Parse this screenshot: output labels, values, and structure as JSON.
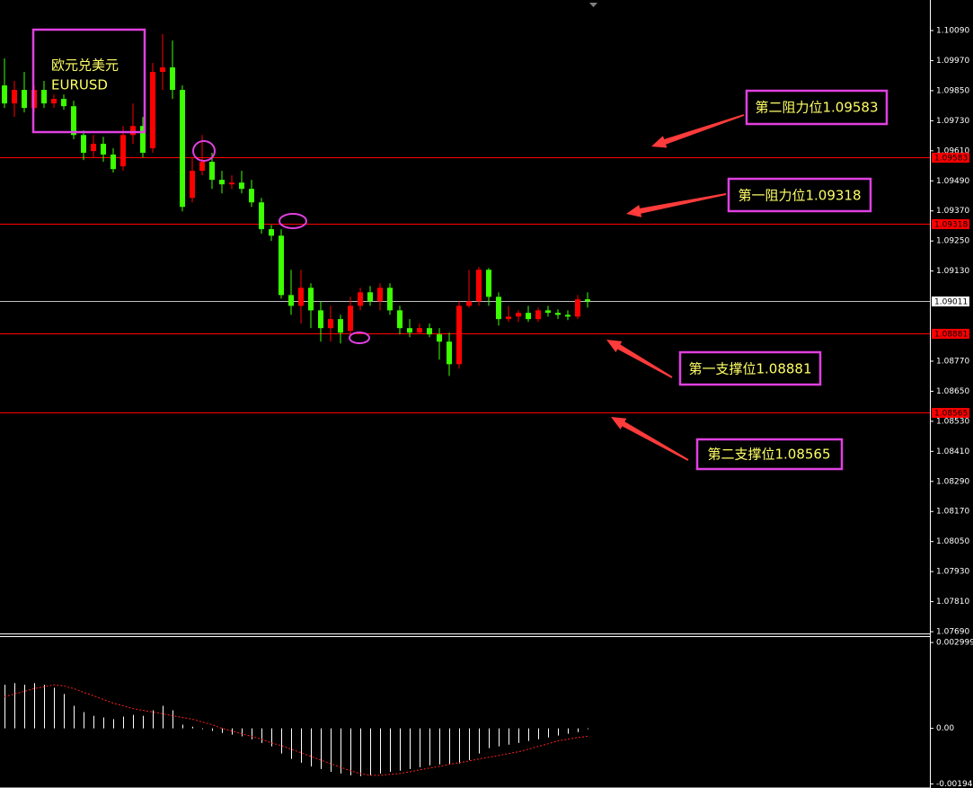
{
  "chart_data": [
    {
      "type": "candlestick",
      "title": "欧元兑美元",
      "subtitle": "EURUSD",
      "up_color": "#ff0000",
      "down_color": "#3cff00",
      "open": [
        1.09871,
        1.09799,
        1.09853,
        1.09781,
        1.09853,
        1.09799,
        1.09817,
        1.09788,
        1.09673,
        1.09609,
        1.09638,
        1.09595,
        1.09548,
        1.09673,
        1.09709,
        1.0962,
        1.09925,
        1.09943,
        1.09853,
        1.09422,
        1.0953,
        1.09566,
        1.09494,
        1.09476,
        1.09483,
        1.09458,
        1.09404,
        1.09297,
        1.09271,
        1.09034,
        1.08991,
        1.09063,
        1.08973,
        1.08902,
        1.08938,
        1.08891,
        1.08991,
        1.09045,
        1.09009,
        1.09063,
        1.08973,
        1.08902,
        1.08884,
        1.08902,
        1.08877,
        1.08848,
        1.08758,
        1.08991,
        1.09009,
        1.09135,
        1.09027,
        1.08938,
        1.08948,
        1.08963,
        1.08938,
        1.08973,
        1.08963,
        1.08955,
        1.08948,
        1.09017
      ],
      "high": [
        1.09979,
        1.09889,
        1.09925,
        1.09871,
        1.09889,
        1.09835,
        1.09835,
        1.0981,
        1.09691,
        1.09673,
        1.09666,
        1.0962,
        1.09709,
        1.09799,
        1.09745,
        1.09961,
        1.10076,
        1.1005,
        1.09871,
        1.09584,
        1.09673,
        1.09602,
        1.0953,
        1.09512,
        1.0953,
        1.09494,
        1.09422,
        1.09314,
        1.09297,
        1.09135,
        1.09135,
        1.09081,
        1.09009,
        1.08991,
        1.08955,
        1.09027,
        1.09063,
        1.0907,
        1.09081,
        1.09081,
        1.08991,
        1.08938,
        1.0892,
        1.0892,
        1.08902,
        1.08884,
        1.09009,
        1.09135,
        1.09146,
        1.09142,
        1.09045,
        1.08991,
        1.08973,
        1.08991,
        1.08984,
        1.08991,
        1.08977,
        1.08973,
        1.09034,
        1.09045
      ],
      "low": [
        1.09781,
        1.09745,
        1.09763,
        1.09763,
        1.09781,
        1.09781,
        1.09774,
        1.09656,
        1.09573,
        1.09584,
        1.09566,
        1.09523,
        1.0953,
        1.09638,
        1.09584,
        1.09602,
        1.09853,
        1.09817,
        1.09368,
        1.09404,
        1.09512,
        1.09458,
        1.0944,
        1.09458,
        1.0944,
        1.09386,
        1.09279,
        1.0925,
        1.0902,
        1.08955,
        1.0892,
        1.08902,
        1.08848,
        1.08848,
        1.08841,
        1.08877,
        1.08973,
        1.08991,
        1.08973,
        1.08955,
        1.08877,
        1.08866,
        1.08877,
        1.08866,
        1.08776,
        1.08711,
        1.0874,
        1.08984,
        1.08991,
        1.08991,
        1.08912,
        1.08927,
        1.08927,
        1.08927,
        1.08927,
        1.08948,
        1.08938,
        1.08934,
        1.08938,
        1.08984
      ],
      "close": [
        1.09799,
        1.09853,
        1.09781,
        1.09853,
        1.09799,
        1.09817,
        1.09788,
        1.09673,
        1.09602,
        1.09638,
        1.09595,
        1.09537,
        1.09673,
        1.09709,
        1.09602,
        1.09925,
        1.09943,
        1.09853,
        1.09386,
        1.0953,
        1.09566,
        1.09494,
        1.09476,
        1.09483,
        1.09458,
        1.09404,
        1.09297,
        1.09271,
        1.09034,
        1.08991,
        1.09063,
        1.08973,
        1.08902,
        1.08938,
        1.08884,
        1.08991,
        1.09045,
        1.09009,
        1.09063,
        1.08973,
        1.08902,
        1.08884,
        1.08902,
        1.08877,
        1.08848,
        1.08758,
        1.08991,
        1.09009,
        1.09135,
        1.09027,
        1.08938,
        1.08948,
        1.08963,
        1.08938,
        1.08973,
        1.08963,
        1.08955,
        1.08948,
        1.09017,
        1.09009
      ],
      "ylim": [
        1.07683,
        1.10212
      ],
      "yticks": [
        {
          "value": 1.1009,
          "label": "1.10090"
        },
        {
          "value": 1.0997,
          "label": "1.09970"
        },
        {
          "value": 1.0985,
          "label": "1.09850"
        },
        {
          "value": 1.0973,
          "label": "1.09730"
        },
        {
          "value": 1.0961,
          "label": "1.09610"
        },
        {
          "value": 1.0949,
          "label": "1.09490"
        },
        {
          "value": 1.0937,
          "label": "1.09370"
        },
        {
          "value": 1.0925,
          "label": "1.09250"
        },
        {
          "value": 1.0913,
          "label": "1.09130"
        },
        {
          "value": 1.0877,
          "label": "1.08770"
        },
        {
          "value": 1.0865,
          "label": "1.08650"
        },
        {
          "value": 1.0853,
          "label": "1.08530"
        },
        {
          "value": 1.0841,
          "label": "1.08410"
        },
        {
          "value": 1.0829,
          "label": "1.08290"
        },
        {
          "value": 1.0817,
          "label": "1.08170"
        },
        {
          "value": 1.0805,
          "label": "1.08050"
        },
        {
          "value": 1.0793,
          "label": "1.07930"
        },
        {
          "value": 1.0781,
          "label": "1.07810"
        },
        {
          "value": 1.0769,
          "label": "1.07690"
        }
      ],
      "levels": [
        {
          "value": 1.09583,
          "color": "#ff0000"
        },
        {
          "value": 1.09318,
          "color": "#ff0000"
        },
        {
          "value": 1.08881,
          "color": "#ff0000"
        },
        {
          "value": 1.08565,
          "color": "#ff0000"
        }
      ],
      "current_price": {
        "value": 1.09011,
        "color": "#c0c0c0"
      },
      "annotations": [
        "第二阻力位1.09583",
        "第一阻力位1.09318",
        "第一支撑位1.08881",
        "第二支撑位1.08565"
      ]
    },
    {
      "type": "macd",
      "color": "#ffffff",
      "signal_color": "#ff2020",
      "values": [
        0.00152,
        0.00158,
        0.00152,
        0.00158,
        0.00152,
        0.00142,
        0.0012,
        0.00079,
        0.00057,
        0.00044,
        0.00038,
        0.00032,
        0.00041,
        0.00047,
        0.00044,
        0.00063,
        0.00079,
        0.00063,
        0.00013,
        6e-05,
        -3e-05,
        -9e-05,
        -0.00016,
        -0.00022,
        -0.00028,
        -0.00038,
        -0.00051,
        -0.00063,
        -0.00088,
        -0.00107,
        -0.0012,
        -0.00133,
        -0.00142,
        -0.00152,
        -0.00158,
        -0.00164,
        -0.00167,
        -0.00164,
        -0.00158,
        -0.00152,
        -0.00148,
        -0.00142,
        -0.00136,
        -0.00129,
        -0.00126,
        -0.00126,
        -0.00123,
        -0.00111,
        -0.00088,
        -0.00069,
        -0.00063,
        -0.00057,
        -0.00051,
        -0.00044,
        -0.00038,
        -0.00032,
        -0.00025,
        -0.00019,
        -0.00013,
        -3e-05
      ],
      "signal": [
        0.00111,
        0.0012,
        0.00129,
        0.00139,
        0.00145,
        0.00152,
        0.00148,
        0.00139,
        0.00126,
        0.00114,
        0.00101,
        0.00088,
        0.00079,
        0.00069,
        0.00063,
        0.00057,
        0.00051,
        0.00044,
        0.00038,
        0.00032,
        0.00022,
        0.00013,
        0,
        -9e-05,
        -0.00019,
        -0.00028,
        -0.00038,
        -0.00051,
        -0.0006,
        -0.00073,
        -0.00085,
        -0.00098,
        -0.00111,
        -0.00123,
        -0.00136,
        -0.00148,
        -0.00158,
        -0.00164,
        -0.00164,
        -0.00161,
        -0.00158,
        -0.00152,
        -0.00145,
        -0.00139,
        -0.00133,
        -0.00126,
        -0.0012,
        -0.00114,
        -0.00107,
        -0.00101,
        -0.00095,
        -0.00088,
        -0.00082,
        -0.00073,
        -0.00063,
        -0.00054,
        -0.00044,
        -0.00038,
        -0.00032,
        -0.00028
      ],
      "ylim": [
        -0.002053,
        0.003221
      ],
      "yticks": [
        0.002999,
        {
          "value": 0,
          "label": "0.00"
        },
        -0.001942
      ]
    }
  ]
}
